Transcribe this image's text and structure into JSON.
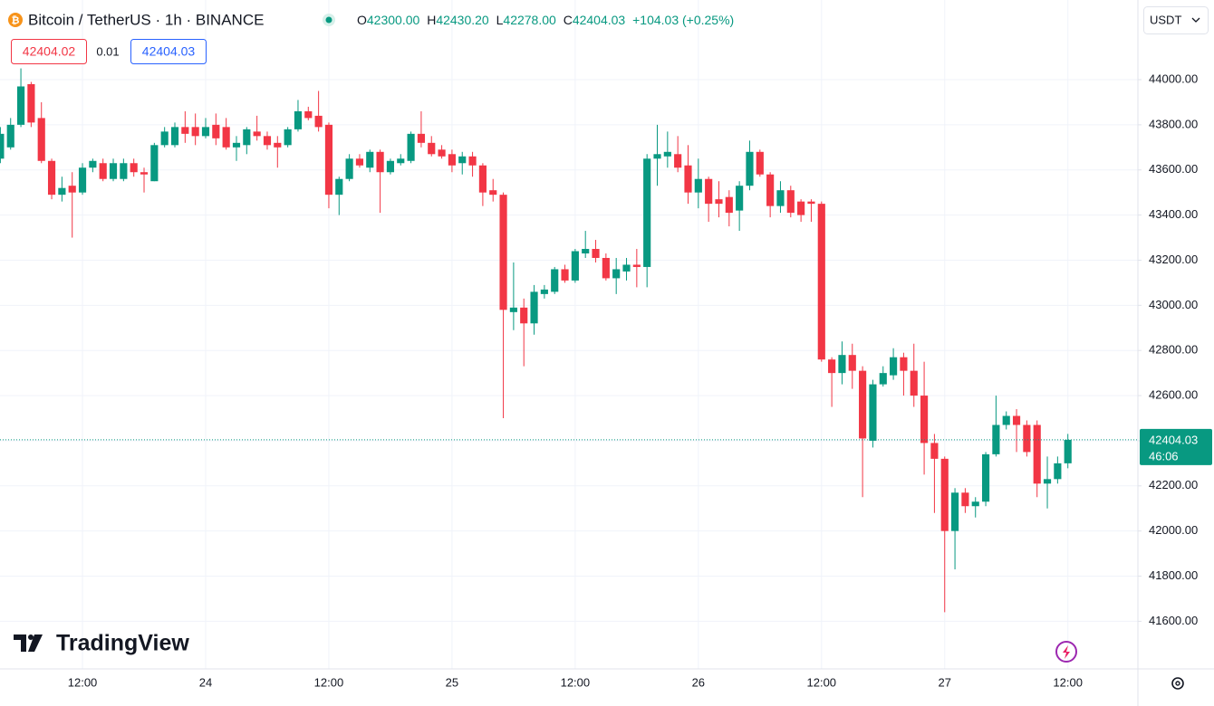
{
  "header": {
    "symbol": "Bitcoin / TetherUS · 1h · BINANCE",
    "legend": [
      {
        "label": "O",
        "value": "42300.00"
      },
      {
        "label": "H",
        "value": "42430.20"
      },
      {
        "label": "L",
        "value": "42278.00"
      },
      {
        "label": "C",
        "value": "42404.03"
      }
    ],
    "change": "+104.03 (+0.25%)",
    "bid": "42404.02",
    "spread": "0.01",
    "ask": "42404.03",
    "currency": "USDT"
  },
  "logo": "TradingView",
  "chart_data": {
    "type": "candlestick",
    "up_color": "#089981",
    "down_color": "#f23645",
    "grid": true,
    "countdown": "46:06",
    "categories": [
      null,
      null,
      null,
      null,
      null,
      null,
      null,
      null,
      "12:00",
      null,
      null,
      null,
      null,
      null,
      null,
      null,
      null,
      null,
      null,
      null,
      "24",
      null,
      null,
      null,
      null,
      null,
      null,
      null,
      null,
      null,
      null,
      null,
      "12:00",
      null,
      null,
      null,
      null,
      null,
      null,
      null,
      null,
      null,
      null,
      null,
      "25",
      null,
      null,
      null,
      null,
      null,
      null,
      null,
      null,
      null,
      null,
      null,
      "12:00",
      null,
      null,
      null,
      null,
      null,
      null,
      null,
      null,
      null,
      null,
      null,
      "26",
      null,
      null,
      null,
      null,
      null,
      null,
      null,
      null,
      null,
      null,
      null,
      "12:00",
      null,
      null,
      null,
      null,
      null,
      null,
      null,
      null,
      null,
      null,
      null,
      "27",
      null,
      null,
      null,
      null,
      null,
      null,
      null,
      null,
      null,
      null,
      null,
      "12:00"
    ],
    "open": [
      43650,
      43700,
      43800,
      43980,
      43830,
      43640,
      43490,
      43530,
      43500,
      43610,
      43630,
      43560,
      43560,
      43630,
      43590,
      43550,
      43710,
      43710,
      43790,
      43790,
      43750,
      43800,
      43790,
      43700,
      43710,
      43770,
      43750,
      43720,
      43710,
      43780,
      43860,
      43840,
      43800,
      43490,
      43560,
      43650,
      43610,
      43680,
      43590,
      43630,
      43640,
      43760,
      43720,
      43690,
      43670,
      43630,
      43660,
      43620,
      43510,
      43490,
      42970,
      42990,
      42920,
      43050,
      43060,
      43160,
      43110,
      43230,
      43250,
      43210,
      43120,
      43150,
      43180,
      43170,
      43650,
      43660,
      43670,
      43620,
      43500,
      43560,
      43470,
      43480,
      43420,
      43530,
      43680,
      43580,
      43440,
      43510,
      43460,
      43460,
      43450,
      42760,
      42700,
      42780,
      42710,
      42400,
      42650,
      42690,
      42770,
      42710,
      42600,
      42390,
      42320,
      42000,
      42170,
      42110,
      42130,
      42340,
      42470,
      42510,
      42470,
      42470,
      42210,
      42230,
      42300
    ],
    "high": [
      43790,
      43830,
      44050,
      43990,
      43900,
      43650,
      43570,
      43590,
      43630,
      43650,
      43650,
      43650,
      43650,
      43650,
      43610,
      43720,
      43790,
      43810,
      43860,
      43850,
      43830,
      43850,
      43830,
      43750,
      43790,
      43840,
      43770,
      43750,
      43790,
      43910,
      43880,
      43950,
      43810,
      43570,
      43670,
      43670,
      43690,
      43690,
      43650,
      43670,
      43770,
      43860,
      43750,
      43710,
      43690,
      43680,
      43680,
      43630,
      43560,
      43500,
      43190,
      43030,
      43090,
      43090,
      43170,
      43180,
      43250,
      43330,
      43290,
      43230,
      43210,
      43210,
      43250,
      43670,
      43800,
      43770,
      43750,
      43710,
      43650,
      43570,
      43550,
      43510,
      43550,
      43730,
      43690,
      43590,
      43550,
      43530,
      43470,
      43470,
      43460,
      42770,
      42840,
      42830,
      42730,
      42670,
      42730,
      42810,
      42790,
      42830,
      42750,
      42430,
      42330,
      42190,
      42190,
      42150,
      42350,
      42600,
      42530,
      42540,
      42490,
      42490,
      42330,
      42330,
      42430.2
    ],
    "low": [
      43630,
      43690,
      43790,
      43790,
      43630,
      43470,
      43460,
      43300,
      43490,
      43590,
      43550,
      43550,
      43550,
      43570,
      43500,
      43550,
      43700,
      43700,
      43720,
      43710,
      43740,
      43710,
      43690,
      43640,
      43670,
      43730,
      43690,
      43610,
      43700,
      43770,
      43820,
      43770,
      43430,
      43400,
      43550,
      43610,
      43590,
      43410,
      43580,
      43620,
      43630,
      43700,
      43660,
      43650,
      43590,
      43580,
      43570,
      43440,
      43460,
      42500,
      42890,
      42730,
      42870,
      43030,
      43050,
      43100,
      43100,
      43210,
      43190,
      43110,
      43050,
      43110,
      43080,
      43080,
      43530,
      43610,
      43590,
      43450,
      43430,
      43370,
      43390,
      43350,
      43330,
      43510,
      43570,
      43390,
      43410,
      43390,
      43370,
      43370,
      42750,
      42550,
      42650,
      42630,
      42150,
      42370,
      42640,
      42670,
      42600,
      42550,
      42250,
      42080,
      41640,
      41830,
      42080,
      42060,
      42110,
      42330,
      42450,
      42350,
      42330,
      42150,
      42100,
      42210,
      42278
    ],
    "close": [
      43760,
      43800,
      43970,
      43810,
      43640,
      43490,
      43520,
      43500,
      43610,
      43640,
      43560,
      43630,
      43630,
      43590,
      43580,
      43710,
      43770,
      43790,
      43760,
      43750,
      43790,
      43740,
      43700,
      43720,
      43780,
      43750,
      43710,
      43700,
      43780,
      43860,
      43830,
      43790,
      43490,
      43560,
      43650,
      43620,
      43680,
      43590,
      43640,
      43650,
      43760,
      43720,
      43670,
      43660,
      43620,
      43660,
      43620,
      43500,
      43490,
      42980,
      42990,
      42920,
      43060,
      43070,
      43160,
      43110,
      43240,
      43250,
      43210,
      43120,
      43160,
      43180,
      43170,
      43650,
      43670,
      43680,
      43610,
      43500,
      43560,
      43450,
      43450,
      43410,
      43530,
      43680,
      43580,
      43440,
      43510,
      43410,
      43400,
      43450,
      42760,
      42700,
      42780,
      42710,
      42410,
      42650,
      42700,
      42770,
      42710,
      42600,
      42390,
      42320,
      42000,
      42170,
      42110,
      42130,
      42340,
      42470,
      42510,
      42470,
      42350,
      42210,
      42230,
      42300,
      42404.03
    ],
    "ylim": [
      41385,
      44353
    ],
    "yticks": [
      {
        "value": 41600,
        "label": "41600.00"
      },
      {
        "value": 41800,
        "label": "41800.00"
      },
      {
        "value": 42000,
        "label": "42000.00"
      },
      {
        "value": 42200,
        "label": "42200.00"
      },
      {
        "value": 42400,
        "label": "42400.00"
      },
      {
        "value": 42600,
        "label": "42600.00"
      },
      {
        "value": 42800,
        "label": "42800.00"
      },
      {
        "value": 43000,
        "label": "43000.00"
      },
      {
        "value": 43200,
        "label": "43200.00"
      },
      {
        "value": 43400,
        "label": "43400.00"
      },
      {
        "value": 43600,
        "label": "43600.00"
      },
      {
        "value": 43800,
        "label": "43800.00"
      },
      {
        "value": 44000,
        "label": "44000.00"
      }
    ]
  }
}
